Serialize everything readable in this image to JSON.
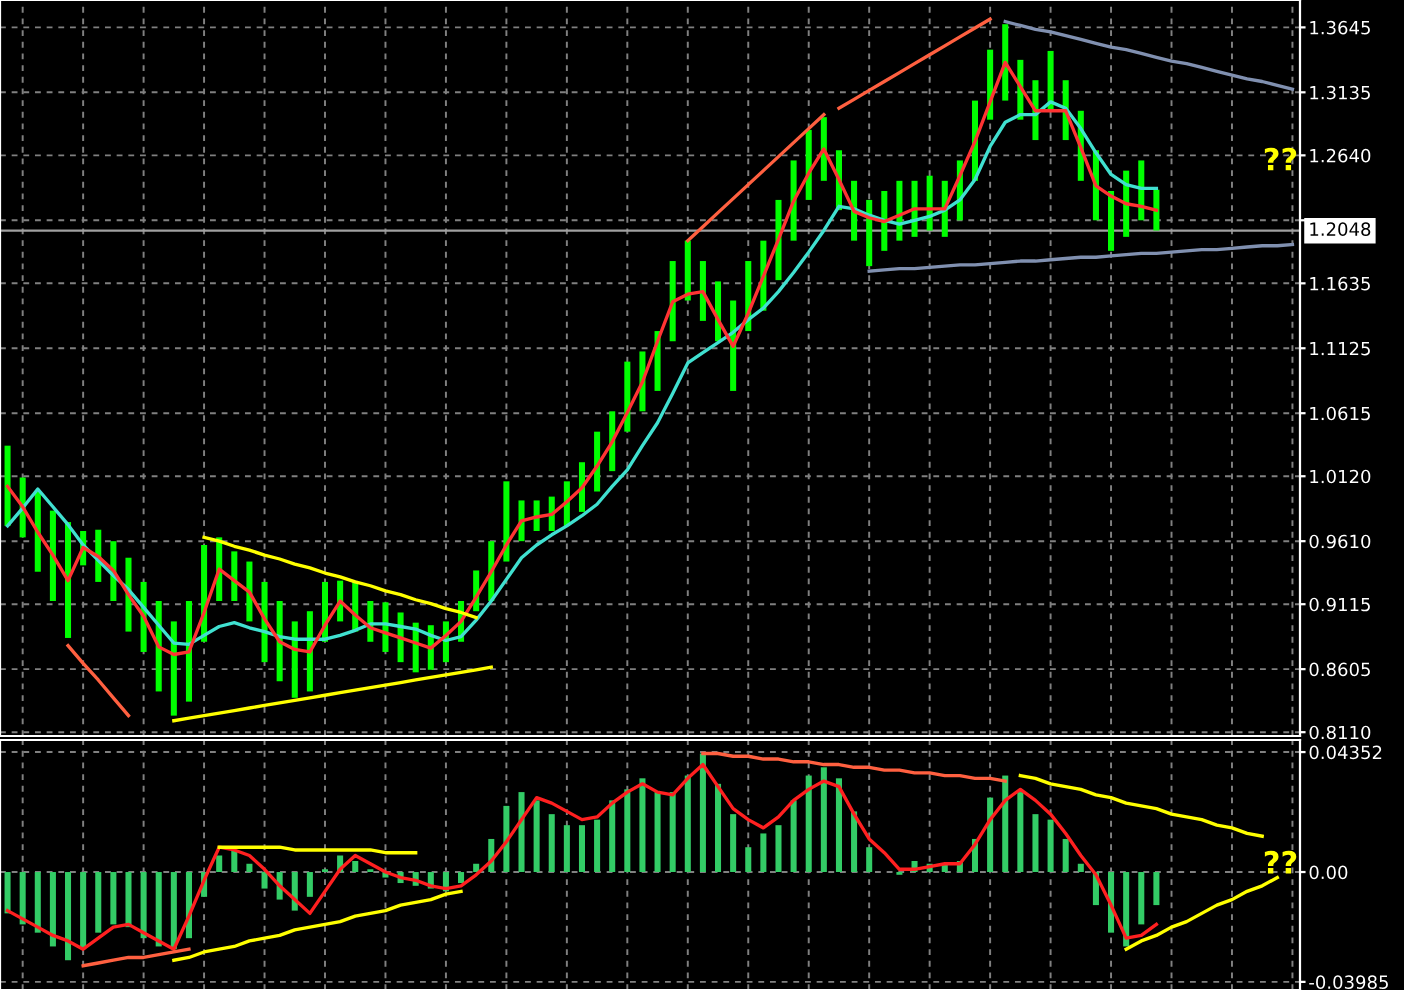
{
  "chart_data": [
    {
      "type": "bar",
      "categories": [
        null,
        null,
        null,
        null,
        null,
        null,
        null,
        null,
        null,
        null,
        null,
        null,
        null,
        null,
        null,
        null,
        null,
        null,
        null,
        null,
        null,
        null,
        null,
        null,
        null,
        null,
        null,
        null,
        null,
        null,
        null,
        null,
        null,
        null,
        null,
        null,
        null,
        null,
        null,
        null,
        null,
        null,
        null,
        null,
        null,
        null,
        null,
        null,
        null,
        null,
        null,
        null,
        null,
        null,
        null,
        null,
        null,
        null,
        null,
        null,
        null,
        null,
        null,
        null,
        null,
        null,
        null,
        null,
        null,
        null,
        null,
        null,
        null,
        null,
        null,
        null,
        null,
        null,
        null,
        null,
        null,
        null,
        null,
        null,
        null,
        null
      ],
      "ylim": [
        0.808,
        1.386
      ],
      "yticks": [
        1.3645,
        1.3135,
        {
          "value": 1.264,
          "label": "1.2640"
        },
        {
          "value": 1.213,
          "label": null
        },
        1.1635,
        1.1125,
        1.0615,
        {
          "value": 1.012,
          "label": "1.0120"
        },
        {
          "value": 0.961,
          "label": "0.9610"
        },
        0.9115,
        0.8605,
        {
          "value": 0.811,
          "label": "0.8110"
        }
      ],
      "tick_labels": "y",
      "grid": true,
      "color": "#00ff00",
      "base": [
        0.973,
        0.964,
        0.937,
        0.914,
        0.885,
        0.942,
        0.929,
        0.914,
        0.89,
        0.874,
        0.843,
        0.824,
        0.835,
        0.882,
        0.914,
        0.914,
        0.898,
        0.866,
        0.851,
        0.838,
        0.843,
        0.882,
        0.898,
        0.89,
        0.882,
        0.874,
        0.866,
        0.858,
        0.86,
        0.866,
        0.882,
        0.906,
        0.914,
        0.945,
        0.961,
        0.969,
        0.969,
        0.973,
        0.984,
        1.0,
        1.016,
        1.047,
        1.063,
        1.079,
        1.118,
        1.15,
        1.134,
        1.118,
        1.079,
        1.126,
        1.142,
        1.166,
        1.197,
        1.229,
        1.244,
        1.221,
        1.197,
        1.177,
        1.189,
        1.197,
        1.2,
        1.205,
        1.2,
        1.213,
        1.244,
        1.292,
        1.307,
        1.292,
        1.276,
        1.299,
        1.276,
        1.244,
        1.213,
        1.189,
        1.2,
        1.213,
        1.205,
        null,
        null,
        null,
        null,
        null,
        null,
        null,
        null,
        null
      ],
      "values": [
        0.063,
        0.047,
        0.063,
        0.071,
        0.091,
        0.027,
        0.041,
        0.047,
        0.058,
        0.055,
        0.071,
        0.074,
        0.079,
        0.076,
        0.05,
        0.039,
        0.047,
        0.063,
        0.063,
        0.06,
        0.063,
        0.047,
        0.032,
        0.039,
        0.032,
        0.039,
        0.039,
        0.039,
        0.035,
        0.032,
        0.032,
        0.032,
        0.047,
        0.063,
        0.032,
        0.024,
        0.027,
        0.035,
        0.039,
        0.047,
        0.047,
        0.055,
        0.047,
        0.047,
        0.063,
        0.047,
        0.047,
        0.047,
        0.071,
        0.055,
        0.055,
        0.063,
        0.063,
        0.055,
        0.05,
        0.047,
        0.047,
        0.052,
        0.047,
        0.047,
        0.044,
        0.043,
        0.044,
        0.047,
        0.063,
        0.055,
        0.06,
        0.047,
        0.047,
        0.047,
        0.047,
        0.055,
        0.055,
        0.047,
        0.052,
        0.047,
        0.032,
        null,
        null,
        null,
        null,
        null,
        null,
        null,
        null,
        null
      ],
      "ref_lines": [
        {
          "axis": "y",
          "value": 1.2048,
          "label": "1.2048",
          "color": "#a0a0a0"
        }
      ],
      "annotations": [
        "??"
      ]
    },
    {
      "type": "line",
      "categories": [
        null,
        null,
        null,
        null,
        null,
        null,
        null,
        null,
        null,
        null,
        null,
        null,
        null,
        null,
        null,
        null,
        null,
        null,
        null,
        null,
        null,
        null,
        null,
        null,
        null,
        null,
        null,
        null,
        null,
        null,
        null,
        null,
        null,
        null,
        null,
        null,
        null,
        null,
        null,
        null,
        null,
        null,
        null,
        null,
        null,
        null,
        null,
        null,
        null,
        null,
        null,
        null,
        null,
        null,
        null,
        null,
        null,
        null,
        null,
        null,
        null,
        null,
        null,
        null,
        null,
        null,
        null,
        null,
        null,
        null,
        null,
        null,
        null,
        null,
        null,
        null,
        null,
        null,
        null,
        null,
        null,
        null,
        null,
        null,
        null,
        null
      ],
      "ylim": [
        0.808,
        1.386
      ],
      "tick_labels": false,
      "series": [
        {
          "color": "#40e0d0",
          "values": [
            0.973,
            0.987,
            1.002,
            0.988,
            0.974,
            0.958,
            0.946,
            0.934,
            0.923,
            0.909,
            0.895,
            0.881,
            0.88,
            0.887,
            0.894,
            0.897,
            0.893,
            0.89,
            0.886,
            0.884,
            0.884,
            0.884,
            0.887,
            0.891,
            0.896,
            0.896,
            0.894,
            0.892,
            0.887,
            0.883,
            0.886,
            0.899,
            0.914,
            0.931,
            0.948,
            0.958,
            0.966,
            0.973,
            0.981,
            0.99,
            1.004,
            1.017,
            1.036,
            1.054,
            1.077,
            1.101,
            1.109,
            1.117,
            1.125,
            1.135,
            1.144,
            1.157,
            1.172,
            1.188,
            1.205,
            1.224,
            1.222,
            1.217,
            1.213,
            1.21,
            1.213,
            1.216,
            1.221,
            1.229,
            1.245,
            1.271,
            1.29,
            1.296,
            1.296,
            1.306,
            1.301,
            1.285,
            1.266,
            1.249,
            1.241,
            1.238,
            1.238,
            null,
            null,
            null,
            null,
            null,
            null,
            null,
            null,
            null
          ]
        },
        {
          "color": "#ff3333",
          "values": [
            1.004,
            0.988,
            0.968,
            0.95,
            0.93,
            0.956,
            0.949,
            0.938,
            0.919,
            0.902,
            0.878,
            0.872,
            0.874,
            0.905,
            0.939,
            0.93,
            0.921,
            0.9,
            0.882,
            0.876,
            0.874,
            0.895,
            0.914,
            0.903,
            0.893,
            0.889,
            0.885,
            0.881,
            0.877,
            0.887,
            0.898,
            0.917,
            0.937,
            0.958,
            0.977,
            0.98,
            0.982,
            0.992,
            1.003,
            1.02,
            1.039,
            1.062,
            1.086,
            1.118,
            1.149,
            1.155,
            1.157,
            1.135,
            1.114,
            1.14,
            1.169,
            1.198,
            1.228,
            1.25,
            1.269,
            1.245,
            1.22,
            1.215,
            1.212,
            1.217,
            1.222,
            1.222,
            1.222,
            1.248,
            1.275,
            1.306,
            1.337,
            1.318,
            1.299,
            1.299,
            1.299,
            1.27,
            1.24,
            1.232,
            1.226,
            1.224,
            1.221,
            null,
            null,
            null,
            null,
            null,
            null,
            null,
            null,
            null
          ]
        },
        {
          "color": "#ff6040",
          "values": [
            null,
            null,
            null,
            null,
            0.879,
            0.865,
            0.852,
            0.838,
            0.824,
            null,
            null,
            null,
            null,
            null,
            null,
            null,
            null,
            null,
            null,
            null,
            null,
            null,
            null,
            null,
            null,
            null,
            null,
            null,
            null,
            null,
            null,
            null,
            null,
            null,
            null,
            null,
            null,
            null,
            null,
            null,
            null,
            null,
            null,
            null,
            null,
            null,
            null,
            null,
            null,
            null,
            null,
            null,
            null,
            null,
            null,
            null,
            null,
            null,
            null,
            null,
            null,
            null,
            null,
            null,
            null,
            null,
            null,
            null,
            null,
            null,
            null,
            null,
            null,
            null,
            null,
            null,
            null,
            null,
            null,
            null,
            null,
            null,
            null,
            null,
            null,
            null
          ]
        },
        {
          "color": "#ffff00",
          "values": [
            null,
            null,
            null,
            null,
            null,
            null,
            null,
            null,
            null,
            null,
            null,
            0.82,
            0.822,
            0.824,
            0.826,
            0.828,
            0.83,
            0.832,
            0.834,
            0.836,
            0.838,
            0.84,
            0.842,
            0.844,
            0.846,
            0.848,
            0.85,
            0.852,
            0.854,
            0.856,
            0.858,
            0.86,
            0.862,
            null,
            null,
            null,
            null,
            null,
            null,
            null,
            null,
            null,
            null,
            null,
            null,
            null,
            null,
            null,
            null,
            null,
            null,
            null,
            null,
            null,
            null,
            null,
            null,
            null,
            null,
            null,
            null,
            null,
            null,
            null,
            null,
            null,
            null,
            null,
            null,
            null,
            null,
            null,
            null,
            null,
            null,
            null,
            null,
            null,
            null,
            null,
            null,
            null,
            null,
            null,
            null,
            null
          ]
        },
        {
          "color": "#ffff00",
          "values": [
            null,
            null,
            null,
            null,
            null,
            null,
            null,
            null,
            null,
            null,
            null,
            null,
            null,
            0.964,
            0.961,
            0.957,
            0.954,
            0.95,
            0.947,
            0.943,
            0.94,
            0.936,
            0.933,
            0.929,
            0.926,
            0.922,
            0.919,
            0.915,
            0.912,
            0.908,
            0.905,
            0.901,
            null,
            null,
            null,
            null,
            null,
            null,
            null,
            null,
            null,
            null,
            null,
            null,
            null,
            null,
            null,
            null,
            null,
            null,
            null,
            null,
            null,
            null,
            null,
            null,
            null,
            null,
            null,
            null,
            null,
            null,
            null,
            null,
            null,
            null,
            null,
            null,
            null,
            null,
            null,
            null,
            null,
            null,
            null,
            null,
            null,
            null,
            null,
            null,
            null,
            null,
            null,
            null,
            null,
            null
          ]
        },
        {
          "color": "#ff6040",
          "values": [
            null,
            null,
            null,
            null,
            null,
            null,
            null,
            null,
            null,
            null,
            null,
            null,
            null,
            null,
            null,
            null,
            null,
            null,
            null,
            null,
            null,
            null,
            null,
            null,
            null,
            null,
            null,
            null,
            null,
            null,
            null,
            null,
            null,
            null,
            null,
            null,
            null,
            null,
            null,
            null,
            null,
            null,
            null,
            null,
            null,
            1.197,
            1.208,
            1.219,
            1.23,
            1.241,
            1.252,
            1.263,
            1.274,
            1.285,
            1.296,
            null,
            null,
            null,
            null,
            null,
            null,
            null,
            null,
            null,
            null,
            null,
            null,
            null,
            null,
            null,
            null,
            null,
            null,
            null,
            null,
            null,
            null,
            null,
            null,
            null,
            null,
            null,
            null,
            null,
            null,
            null
          ]
        },
        {
          "color": "#ff6040",
          "values": [
            null,
            null,
            null,
            null,
            null,
            null,
            null,
            null,
            null,
            null,
            null,
            null,
            null,
            null,
            null,
            null,
            null,
            null,
            null,
            null,
            null,
            null,
            null,
            null,
            null,
            null,
            null,
            null,
            null,
            null,
            null,
            null,
            null,
            null,
            null,
            null,
            null,
            null,
            null,
            null,
            null,
            null,
            null,
            null,
            null,
            null,
            null,
            null,
            null,
            null,
            null,
            null,
            null,
            null,
            null,
            1.301,
            1.308,
            1.315,
            1.322,
            1.329,
            1.336,
            1.343,
            1.35,
            1.357,
            1.364,
            1.371,
            null,
            null,
            null,
            null,
            null,
            null,
            null,
            null,
            null,
            null,
            null,
            null,
            null,
            null,
            null,
            null,
            null,
            null,
            null,
            null
          ]
        },
        {
          "color": "#8090b0",
          "values": [
            null,
            null,
            null,
            null,
            null,
            null,
            null,
            null,
            null,
            null,
            null,
            null,
            null,
            null,
            null,
            null,
            null,
            null,
            null,
            null,
            null,
            null,
            null,
            null,
            null,
            null,
            null,
            null,
            null,
            null,
            null,
            null,
            null,
            null,
            null,
            null,
            null,
            null,
            null,
            null,
            null,
            null,
            null,
            null,
            null,
            null,
            null,
            null,
            null,
            null,
            null,
            null,
            null,
            null,
            null,
            null,
            null,
            null,
            null,
            null,
            null,
            null,
            null,
            null,
            null,
            null,
            1.369,
            1.366,
            1.363,
            1.361,
            1.358,
            1.355,
            1.352,
            1.349,
            1.347,
            1.344,
            1.341,
            1.338,
            1.336,
            1.333,
            1.33,
            1.327,
            1.324,
            1.322,
            1.319,
            1.316
          ]
        },
        {
          "color": "#8090b0",
          "values": [
            null,
            null,
            null,
            null,
            null,
            null,
            null,
            null,
            null,
            null,
            null,
            null,
            null,
            null,
            null,
            null,
            null,
            null,
            null,
            null,
            null,
            null,
            null,
            null,
            null,
            null,
            null,
            null,
            null,
            null,
            null,
            null,
            null,
            null,
            null,
            null,
            null,
            null,
            null,
            null,
            null,
            null,
            null,
            null,
            null,
            null,
            null,
            null,
            null,
            null,
            null,
            null,
            null,
            null,
            null,
            null,
            null,
            1.173,
            1.174,
            1.175,
            1.175,
            1.176,
            1.177,
            1.178,
            1.178,
            1.179,
            1.18,
            1.181,
            1.181,
            1.182,
            1.183,
            1.184,
            1.184,
            1.185,
            1.186,
            1.187,
            1.187,
            1.188,
            1.189,
            1.19,
            1.19,
            1.191,
            1.192,
            1.193,
            1.193,
            1.194
          ]
        }
      ]
    },
    {
      "type": "bar",
      "categories": [
        null,
        null,
        null,
        null,
        null,
        null,
        null,
        null,
        null,
        null,
        null,
        null,
        null,
        null,
        null,
        null,
        null,
        null,
        null,
        null,
        null,
        null,
        null,
        null,
        null,
        null,
        null,
        null,
        null,
        null,
        null,
        null,
        null,
        null,
        null,
        null,
        null,
        null,
        null,
        null,
        null,
        null,
        null,
        null,
        null,
        null,
        null,
        null,
        null,
        null,
        null,
        null,
        null,
        null,
        null,
        null,
        null,
        null,
        null,
        null,
        null,
        null,
        null,
        null,
        null,
        null,
        null,
        null,
        null,
        null,
        null,
        null,
        null,
        null,
        null,
        null,
        null,
        null,
        null,
        null,
        null,
        null,
        null,
        null,
        null,
        null
      ],
      "ylim": [
        -0.0428,
        0.0479
      ],
      "yticks": [
        0.04352,
        {
          "value": 0,
          "label": "0.00"
        },
        -0.03985
      ],
      "tick_labels": "y",
      "grid": true,
      "color": "#33cc66",
      "values": [
        -0.015,
        -0.019,
        -0.022,
        -0.027,
        -0.032,
        -0.028,
        -0.022,
        -0.019,
        -0.02,
        -0.024,
        -0.027,
        -0.028,
        -0.024,
        -0.009,
        0.006,
        0.008,
        0.003,
        -0.006,
        -0.01,
        -0.014,
        -0.009,
        0.001,
        0.006,
        0.004,
        0.001,
        -0.002,
        -0.004,
        -0.005,
        -0.006,
        -0.007,
        -0.004,
        0.003,
        0.012,
        0.024,
        0.029,
        0.026,
        0.021,
        0.017,
        0.017,
        0.019,
        0.026,
        0.03,
        0.034,
        0.029,
        0.029,
        0.035,
        0.043,
        0.032,
        0.021,
        0.009,
        0.014,
        0.017,
        0.026,
        0.035,
        0.038,
        0.034,
        0.022,
        0.009,
        0,
        -0.001,
        0.004,
        0.003,
        0.003,
        0.004,
        0.012,
        0.027,
        0.035,
        0.029,
        0.021,
        0.019,
        0.012,
        0.003,
        -0.012,
        -0.022,
        -0.027,
        -0.019,
        -0.012,
        null,
        null,
        null,
        null,
        null,
        null,
        null,
        null,
        null
      ],
      "annotations": [
        "??"
      ]
    },
    {
      "type": "line",
      "categories": [
        null,
        null,
        null,
        null,
        null,
        null,
        null,
        null,
        null,
        null,
        null,
        null,
        null,
        null,
        null,
        null,
        null,
        null,
        null,
        null,
        null,
        null,
        null,
        null,
        null,
        null,
        null,
        null,
        null,
        null,
        null,
        null,
        null,
        null,
        null,
        null,
        null,
        null,
        null,
        null,
        null,
        null,
        null,
        null,
        null,
        null,
        null,
        null,
        null,
        null,
        null,
        null,
        null,
        null,
        null,
        null,
        null,
        null,
        null,
        null,
        null,
        null,
        null,
        null,
        null,
        null,
        null,
        null,
        null,
        null,
        null,
        null,
        null,
        null,
        null,
        null,
        null,
        null,
        null,
        null,
        null,
        null,
        null,
        null,
        null,
        null
      ],
      "ylim": [
        -0.0428,
        0.0479
      ],
      "tick_labels": false,
      "series": [
        {
          "color": "#ff2020",
          "values": [
            -0.014,
            -0.017,
            -0.02,
            -0.023,
            -0.025,
            -0.028,
            -0.024,
            -0.02,
            -0.019,
            -0.022,
            -0.025,
            -0.028,
            -0.016,
            -0.003,
            0.009,
            0.008,
            0.006,
            0.001,
            -0.005,
            -0.01,
            -0.015,
            -0.007,
            0.001,
            0.006,
            0.003,
            0,
            -0.002,
            -0.003,
            -0.005,
            -0.006,
            -0.005,
            -0.001,
            0.004,
            0.011,
            0.019,
            0.027,
            0.025,
            0.022,
            0.019,
            0.02,
            0.025,
            0.029,
            0.032,
            0.029,
            0.028,
            0.034,
            0.039,
            0.031,
            0.023,
            0.019,
            0.016,
            0.02,
            0.026,
            0.03,
            0.033,
            0.031,
            0.021,
            0.012,
            0.007,
            0.001,
            0.001,
            0.002,
            0.003,
            0.003,
            0.01,
            0.019,
            0.026,
            0.03,
            0.026,
            0.021,
            0.014,
            0.006,
            -0.001,
            -0.012,
            -0.024,
            -0.023,
            -0.019,
            null,
            null,
            null,
            null,
            null,
            null,
            null,
            null,
            null
          ]
        },
        {
          "color": "#ff6040",
          "values": [
            null,
            null,
            null,
            null,
            null,
            -0.034,
            -0.033,
            -0.032,
            -0.031,
            -0.031,
            -0.03,
            -0.029,
            -0.028,
            null,
            null,
            null,
            null,
            null,
            null,
            null,
            null,
            null,
            null,
            null,
            null,
            null,
            null,
            null,
            null,
            null,
            null,
            null,
            null,
            null,
            null,
            null,
            null,
            null,
            null,
            null,
            null,
            null,
            null,
            null,
            null,
            null,
            null,
            null,
            null,
            null,
            null,
            null,
            null,
            null,
            null,
            null,
            null,
            null,
            null,
            null,
            null,
            null,
            null,
            null,
            null,
            null,
            null,
            null,
            null,
            null,
            null,
            null,
            null,
            null,
            null,
            null,
            null,
            null,
            null,
            null,
            null,
            null,
            null,
            null,
            null,
            null
          ]
        },
        {
          "color": "#ffff00",
          "values": [
            null,
            null,
            null,
            null,
            null,
            null,
            null,
            null,
            null,
            null,
            null,
            -0.032,
            -0.031,
            -0.029,
            -0.028,
            -0.027,
            -0.025,
            -0.024,
            -0.023,
            -0.021,
            -0.02,
            -0.019,
            -0.018,
            -0.016,
            -0.015,
            -0.014,
            -0.012,
            -0.011,
            -0.01,
            -0.008,
            -0.007,
            null,
            null,
            null,
            null,
            null,
            null,
            null,
            null,
            null,
            null,
            null,
            null,
            null,
            null,
            null,
            null,
            null,
            null,
            null,
            null,
            null,
            null,
            null,
            null,
            null,
            null,
            null,
            null,
            null,
            null,
            null,
            null,
            null,
            null,
            null,
            null,
            null,
            null,
            null,
            null,
            null,
            null,
            null,
            null,
            null,
            null,
            null,
            null,
            null,
            null,
            null,
            null,
            null,
            null,
            null
          ]
        },
        {
          "color": "#ffff00",
          "values": [
            null,
            null,
            null,
            null,
            null,
            null,
            null,
            null,
            null,
            null,
            null,
            null,
            null,
            null,
            0.009,
            0.009,
            0.009,
            0.009,
            0.009,
            0.008,
            0.008,
            0.008,
            0.008,
            0.008,
            0.008,
            0.007,
            0.007,
            0.007,
            null,
            null,
            null,
            null,
            null,
            null,
            null,
            null,
            null,
            null,
            null,
            null,
            null,
            null,
            null,
            null,
            null,
            null,
            null,
            null,
            null,
            null,
            null,
            null,
            null,
            null,
            null,
            null,
            null,
            null,
            null,
            null,
            null,
            null,
            null,
            null,
            null,
            null,
            null,
            null,
            null,
            null,
            null,
            null,
            null,
            null,
            null,
            null,
            null,
            null,
            null,
            null,
            null,
            null,
            null,
            null,
            null,
            null
          ]
        },
        {
          "color": "#ff6040",
          "values": [
            null,
            null,
            null,
            null,
            null,
            null,
            null,
            null,
            null,
            null,
            null,
            null,
            null,
            null,
            null,
            null,
            null,
            null,
            null,
            null,
            null,
            null,
            null,
            null,
            null,
            null,
            null,
            null,
            null,
            null,
            null,
            null,
            null,
            null,
            null,
            null,
            null,
            null,
            null,
            null,
            null,
            null,
            null,
            null,
            null,
            null,
            0.043,
            0.043,
            0.042,
            0.042,
            0.041,
            0.041,
            0.04,
            0.04,
            0.039,
            0.039,
            0.038,
            0.038,
            0.037,
            0.037,
            0.036,
            0.036,
            0.035,
            0.035,
            0.034,
            0.034,
            0.033,
            null,
            null,
            null,
            null,
            null,
            null,
            null,
            null,
            null,
            null,
            null,
            null,
            null,
            null,
            null,
            null,
            null,
            null,
            null
          ]
        },
        {
          "color": "#ffff00",
          "values": [
            null,
            null,
            null,
            null,
            null,
            null,
            null,
            null,
            null,
            null,
            null,
            null,
            null,
            null,
            null,
            null,
            null,
            null,
            null,
            null,
            null,
            null,
            null,
            null,
            null,
            null,
            null,
            null,
            null,
            null,
            null,
            null,
            null,
            null,
            null,
            null,
            null,
            null,
            null,
            null,
            null,
            null,
            null,
            null,
            null,
            null,
            null,
            null,
            null,
            null,
            null,
            null,
            null,
            null,
            null,
            null,
            null,
            null,
            null,
            null,
            null,
            null,
            null,
            null,
            null,
            null,
            null,
            0.035,
            0.034,
            0.032,
            0.031,
            0.03,
            0.028,
            0.027,
            0.025,
            0.024,
            0.023,
            0.021,
            0.02,
            0.019,
            0.017,
            0.016,
            0.014,
            0.013,
            null,
            null
          ]
        },
        {
          "color": "#ffff00",
          "values": [
            null,
            null,
            null,
            null,
            null,
            null,
            null,
            null,
            null,
            null,
            null,
            null,
            null,
            null,
            null,
            null,
            null,
            null,
            null,
            null,
            null,
            null,
            null,
            null,
            null,
            null,
            null,
            null,
            null,
            null,
            null,
            null,
            null,
            null,
            null,
            null,
            null,
            null,
            null,
            null,
            null,
            null,
            null,
            null,
            null,
            null,
            null,
            null,
            null,
            null,
            null,
            null,
            null,
            null,
            null,
            null,
            null,
            null,
            null,
            null,
            null,
            null,
            null,
            null,
            null,
            null,
            null,
            null,
            null,
            null,
            null,
            null,
            null,
            null,
            -0.028,
            -0.025,
            -0.023,
            -0.02,
            -0.018,
            -0.015,
            -0.012,
            -0.01,
            -0.007,
            -0.005,
            -0.002,
            null
          ]
        }
      ]
    }
  ]
}
